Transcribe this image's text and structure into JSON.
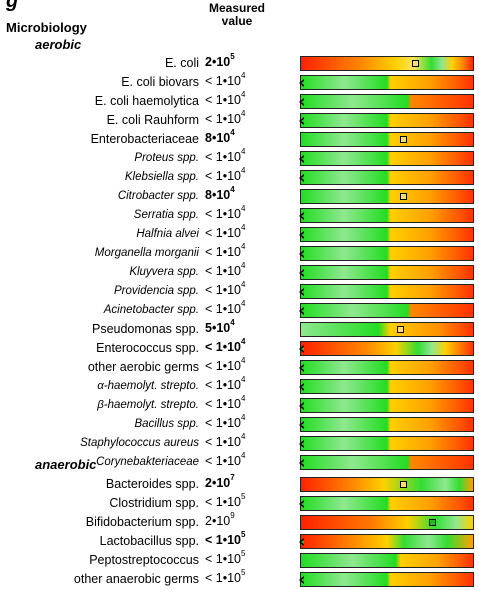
{
  "header": {
    "title_cut": "g",
    "measured_value": "Measured value",
    "title": "Microbiology"
  },
  "sections": {
    "aerobic": "aerobic",
    "anaerobic": "anaerobic"
  },
  "aerobic_rows": [
    {
      "label": "E. coli",
      "italic": false,
      "base": "2•10",
      "exp": "5",
      "bold": true,
      "marker": "square",
      "level": 0.67
    },
    {
      "label": "E. coli biovars",
      "italic": false,
      "base": "< 1•10",
      "exp": "4",
      "bold": false,
      "marker": "triangle",
      "level": 0
    },
    {
      "label": "E. coli haemolytica",
      "italic": false,
      "base": "< 1•10",
      "exp": "4",
      "bold": false,
      "marker": "triangle",
      "level": 0
    },
    {
      "label": "E. coli Rauhform",
      "italic": false,
      "base": "< 1•10",
      "exp": "4",
      "bold": false,
      "marker": "triangle",
      "level": 0
    },
    {
      "label": "Enterobacteriaceae",
      "italic": false,
      "base": "8•10",
      "exp": "4",
      "bold": true,
      "marker": "square",
      "level": 0.6
    },
    {
      "label": "Proteus spp.",
      "italic": true,
      "base": "< 1•10",
      "exp": "4",
      "bold": false,
      "marker": "triangle",
      "level": 0
    },
    {
      "label": "Klebsiella spp.",
      "italic": true,
      "base": "< 1•10",
      "exp": "4",
      "bold": false,
      "marker": "triangle",
      "level": 0
    },
    {
      "label": "Citrobacter spp.",
      "italic": true,
      "base": "8•10",
      "exp": "4",
      "bold": true,
      "marker": "square",
      "level": 0.6
    },
    {
      "label": "Serratia spp.",
      "italic": true,
      "base": "< 1•10",
      "exp": "4",
      "bold": false,
      "marker": "triangle",
      "level": 0
    },
    {
      "label": "Halfnia alvei",
      "italic": true,
      "base": "< 1•10",
      "exp": "4",
      "bold": false,
      "marker": "triangle",
      "level": 0
    },
    {
      "label": "Morganella morganii",
      "italic": true,
      "base": "< 1•10",
      "exp": "4",
      "bold": false,
      "marker": "triangle",
      "level": 0
    },
    {
      "label": "Kluyvera spp.",
      "italic": true,
      "base": "< 1•10",
      "exp": "4",
      "bold": false,
      "marker": "triangle",
      "level": 0
    },
    {
      "label": "Providencia spp.",
      "italic": true,
      "base": "< 1•10",
      "exp": "4",
      "bold": false,
      "marker": "triangle",
      "level": 0
    },
    {
      "label": "Acinetobacter spp.",
      "italic": true,
      "base": "< 1•10",
      "exp": "4",
      "bold": false,
      "marker": "triangle",
      "level": 0
    },
    {
      "label": "Pseudomonas spp.",
      "italic": false,
      "base": "5•10",
      "exp": "4",
      "bold": true,
      "marker": "square",
      "level": 0.58
    },
    {
      "label": "Enterococcus spp.",
      "italic": false,
      "base": "< 1•10",
      "exp": "4",
      "bold": true,
      "marker": "triangle",
      "level": 0
    },
    {
      "label": "other aerobic germs",
      "italic": false,
      "base": "< 1•10",
      "exp": "4",
      "bold": false,
      "marker": "triangle",
      "level": 0
    },
    {
      "label": "α-haemolyt. strepto.",
      "italic": true,
      "base": "< 1•10",
      "exp": "4",
      "bold": false,
      "marker": "triangle",
      "level": 0
    },
    {
      "label": "β-haemolyt. strepto.",
      "italic": true,
      "base": "< 1•10",
      "exp": "4",
      "bold": false,
      "marker": "triangle",
      "level": 0
    },
    {
      "label": "Bacillus spp.",
      "italic": true,
      "base": "< 1•10",
      "exp": "4",
      "bold": false,
      "marker": "triangle",
      "level": 0
    },
    {
      "label": "Staphylococcus aureus",
      "italic": true,
      "base": "< 1•10",
      "exp": "4",
      "bold": false,
      "marker": "triangle",
      "level": 0
    },
    {
      "label": "Corynebakteriaceae",
      "italic": true,
      "base": "< 1•10",
      "exp": "4",
      "bold": false,
      "marker": "triangle",
      "level": 0
    }
  ],
  "anaerobic_rows": [
    {
      "label": "Bacteroides spp.",
      "italic": false,
      "base": "2•10",
      "exp": "7",
      "bold": true,
      "marker": "square",
      "level": 0.6
    },
    {
      "label": "Clostridium spp.",
      "italic": false,
      "base": "< 1•10",
      "exp": "5",
      "bold": false,
      "marker": "triangle",
      "level": 0
    },
    {
      "label": "Bifidobacterium spp.",
      "italic": false,
      "base": "2•10",
      "exp": "9",
      "bold": false,
      "marker": "square-green",
      "level": 0.77
    },
    {
      "label": "Lactobacillus spp.",
      "italic": false,
      "base": "< 1•10",
      "exp": "5",
      "bold": true,
      "marker": "triangle",
      "level": 0
    },
    {
      "label": "Peptostreptococcus",
      "italic": false,
      "base": "< 1•10",
      "exp": "5",
      "bold": false,
      "marker": "none",
      "level": 0
    },
    {
      "label": "other anaerobic germs",
      "italic": false,
      "base": "< 1•10",
      "exp": "5",
      "bold": false,
      "marker": "triangle",
      "level": 0
    }
  ]
}
